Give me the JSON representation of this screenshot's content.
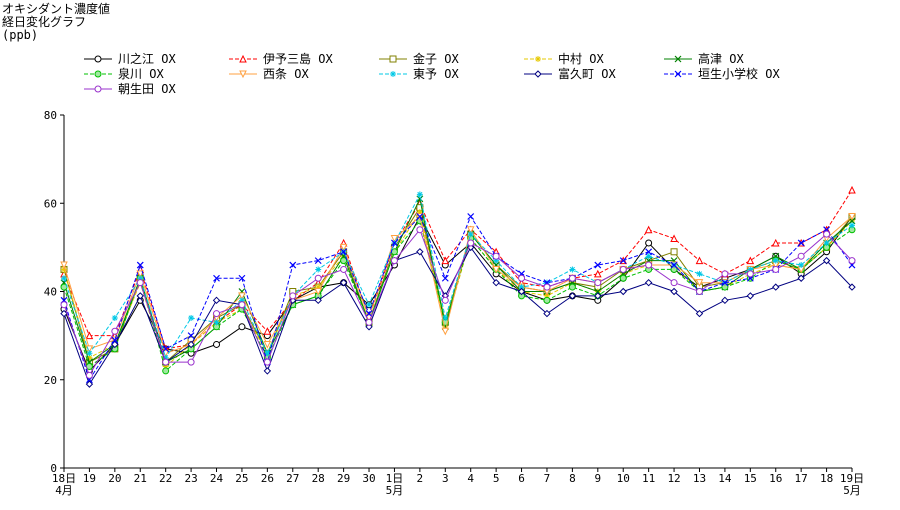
{
  "title_lines": [
    "オキシダント濃度値",
    "経日変化グラフ",
    "(ppb)"
  ],
  "chart_data": {
    "type": "line",
    "title": "オキシダント濃度値 経日変化グラフ",
    "ylabel": "(ppb)",
    "xlabel": "",
    "ylim": [
      0,
      80
    ],
    "yticks": [
      0,
      20,
      40,
      60,
      80
    ],
    "grid": false,
    "legend_position": "top",
    "categories": [
      "18",
      "19",
      "20",
      "21",
      "22",
      "23",
      "24",
      "25",
      "26",
      "27",
      "28",
      "29",
      "30",
      "1",
      "2",
      "3",
      "4",
      "5",
      "6",
      "7",
      "8",
      "9",
      "10",
      "11",
      "12",
      "13",
      "14",
      "15",
      "16",
      "17",
      "18",
      "19"
    ],
    "x_labels": [
      {
        "text": "18日",
        "sub": "4月"
      },
      {
        "text": "19",
        "sub": ""
      },
      {
        "text": "20",
        "sub": ""
      },
      {
        "text": "21",
        "sub": ""
      },
      {
        "text": "22",
        "sub": ""
      },
      {
        "text": "23",
        "sub": ""
      },
      {
        "text": "24",
        "sub": ""
      },
      {
        "text": "25",
        "sub": ""
      },
      {
        "text": "26",
        "sub": ""
      },
      {
        "text": "27",
        "sub": ""
      },
      {
        "text": "28",
        "sub": ""
      },
      {
        "text": "29",
        "sub": ""
      },
      {
        "text": "30",
        "sub": ""
      },
      {
        "text": "1日",
        "sub": "5月"
      },
      {
        "text": "2",
        "sub": ""
      },
      {
        "text": "3",
        "sub": ""
      },
      {
        "text": "4",
        "sub": ""
      },
      {
        "text": "5",
        "sub": ""
      },
      {
        "text": "6",
        "sub": ""
      },
      {
        "text": "7",
        "sub": ""
      },
      {
        "text": "8",
        "sub": ""
      },
      {
        "text": "9",
        "sub": ""
      },
      {
        "text": "10",
        "sub": ""
      },
      {
        "text": "11",
        "sub": ""
      },
      {
        "text": "12",
        "sub": ""
      },
      {
        "text": "13",
        "sub": ""
      },
      {
        "text": "14",
        "sub": ""
      },
      {
        "text": "15",
        "sub": ""
      },
      {
        "text": "16",
        "sub": ""
      },
      {
        "text": "17",
        "sub": ""
      },
      {
        "text": "18",
        "sub": ""
      },
      {
        "text": "19日",
        "sub": "5月"
      }
    ],
    "series": [
      {
        "name": "川之江 OX",
        "color": "#000000",
        "marker": "circle",
        "dash": "solid",
        "values": [
          36,
          22,
          28,
          38,
          27,
          26,
          28,
          32,
          30,
          38,
          41,
          42,
          37,
          46,
          57,
          46,
          51,
          44,
          40,
          38,
          39,
          38,
          43,
          51,
          45,
          41,
          43,
          45,
          48,
          44,
          49,
          57
        ]
      },
      {
        "name": "伊予三島 OX",
        "color": "#ff0000",
        "marker": "triangle",
        "dash": "dashed",
        "values": [
          44,
          30,
          30,
          45,
          27,
          28,
          33,
          37,
          31,
          38,
          42,
          51,
          34,
          51,
          60,
          47,
          54,
          49,
          42,
          41,
          43,
          44,
          47,
          54,
          52,
          47,
          44,
          47,
          51,
          51,
          54,
          63
        ]
      },
      {
        "name": "金子 OX",
        "color": "#808000",
        "marker": "square",
        "dash": "solid",
        "values": [
          45,
          24,
          27,
          43,
          24,
          29,
          34,
          37,
          26,
          40,
          41,
          49,
          33,
          50,
          59,
          33,
          53,
          46,
          41,
          40,
          42,
          41,
          45,
          47,
          49,
          41,
          42,
          45,
          47,
          45,
          50,
          57
        ]
      },
      {
        "name": "中村 OX",
        "color": "#e6c800",
        "marker": "star",
        "dash": "dashed",
        "values": [
          45,
          25,
          28,
          42,
          23,
          28,
          33,
          36,
          26,
          39,
          41,
          48,
          33,
          49,
          58,
          32,
          52,
          45,
          40,
          39,
          42,
          40,
          44,
          46,
          46,
          40,
          41,
          44,
          46,
          45,
          50,
          56
        ]
      },
      {
        "name": "高津 OX",
        "color": "#008000",
        "marker": "x",
        "dash": "solid",
        "values": [
          42,
          24,
          28,
          43,
          24,
          27,
          32,
          40,
          26,
          37,
          39,
          48,
          33,
          49,
          61,
          32,
          53,
          46,
          40,
          40,
          42,
          40,
          44,
          47,
          47,
          40,
          41,
          45,
          48,
          45,
          51,
          56
        ]
      },
      {
        "name": "泉川 OX",
        "color": "#00c000",
        "marker": "circle-filled",
        "dash": "dashed",
        "values": [
          41,
          23,
          27,
          43,
          22,
          27,
          32,
          36,
          25,
          37,
          39,
          47,
          33,
          49,
          56,
          33,
          52,
          45,
          39,
          38,
          41,
          39,
          43,
          45,
          45,
          40,
          41,
          43,
          47,
          45,
          50,
          54
        ]
      },
      {
        "name": "西条 OX",
        "color": "#ffa040",
        "marker": "triangle-down",
        "dash": "solid",
        "values": [
          46,
          27,
          29,
          44,
          26,
          28,
          34,
          39,
          28,
          38,
          40,
          50,
          34,
          52,
          57,
          31,
          54,
          45,
          41,
          40,
          43,
          42,
          45,
          46,
          46,
          42,
          42,
          45,
          46,
          45,
          52,
          57
        ]
      },
      {
        "name": "東予 OX",
        "color": "#00c8e6",
        "marker": "star",
        "dash": "dashed",
        "values": [
          43,
          26,
          34,
          43,
          25,
          34,
          33,
          38,
          26,
          39,
          45,
          49,
          37,
          51,
          62,
          34,
          53,
          47,
          41,
          42,
          45,
          42,
          45,
          48,
          46,
          44,
          42,
          45,
          47,
          46,
          51,
          55
        ]
      },
      {
        "name": "富久町 OX",
        "color": "#000080",
        "marker": "diamond",
        "dash": "solid",
        "values": [
          35,
          19,
          28,
          39,
          24,
          28,
          38,
          37,
          22,
          38,
          38,
          42,
          32,
          47,
          49,
          39,
          50,
          42,
          40,
          35,
          39,
          39,
          40,
          42,
          40,
          35,
          38,
          39,
          41,
          43,
          47,
          41
        ]
      },
      {
        "name": "垣生小学校 OX",
        "color": "#0000ff",
        "marker": "x",
        "dash": "dashed",
        "values": [
          38,
          20,
          29,
          46,
          27,
          30,
          43,
          43,
          24,
          46,
          47,
          49,
          35,
          51,
          57,
          43,
          57,
          48,
          44,
          42,
          43,
          46,
          47,
          49,
          46,
          40,
          42,
          43,
          45,
          51,
          54,
          46
        ]
      },
      {
        "name": "朝生田 OX",
        "color": "#9932cc",
        "marker": "circle",
        "dash": "solid",
        "values": [
          37,
          21,
          31,
          42,
          24,
          24,
          35,
          37,
          24,
          39,
          43,
          45,
          33,
          47,
          54,
          38,
          51,
          48,
          43,
          41,
          43,
          42,
          45,
          46,
          42,
          40,
          44,
          44,
          45,
          48,
          53,
          47
        ]
      }
    ]
  }
}
